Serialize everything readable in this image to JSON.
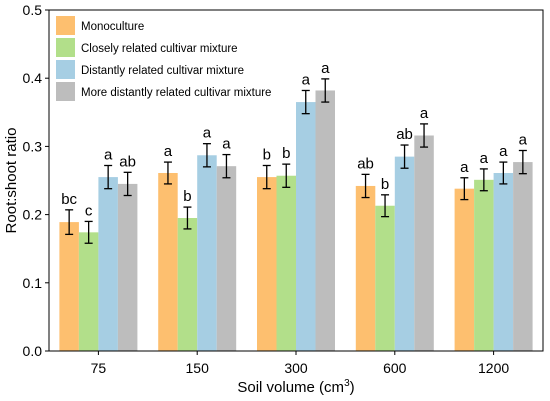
{
  "chart_data": {
    "type": "bar",
    "xlabel": "Soil volume (cm",
    "xlabel_sup": "3",
    "xlabel_end": ")",
    "ylabel": "Root:shoot ratio",
    "ylim": [
      0,
      0.5
    ],
    "yticks": [
      "0.0",
      "0.1",
      "0.2",
      "0.3",
      "0.4",
      "0.5"
    ],
    "categories": [
      "75",
      "150",
      "300",
      "600",
      "1200"
    ],
    "legend_position": "top-left",
    "series": [
      {
        "name": "Monoculture",
        "color": "#FDBF6F",
        "values": [
          0.189,
          0.261,
          0.255,
          0.242,
          0.238
        ],
        "errors": [
          0.018,
          0.016,
          0.017,
          0.017,
          0.016
        ],
        "letters": [
          "bc",
          "a",
          "b",
          "ab",
          "a"
        ]
      },
      {
        "name": "Closely related cultivar mixture",
        "color": "#B2DF8A",
        "values": [
          0.174,
          0.195,
          0.257,
          0.213,
          0.251
        ],
        "errors": [
          0.016,
          0.016,
          0.017,
          0.016,
          0.016
        ],
        "letters": [
          "c",
          "b",
          "b",
          "b",
          "a"
        ]
      },
      {
        "name": "Distantly related cultivar mixture",
        "color": "#A6CEE3",
        "values": [
          0.255,
          0.287,
          0.365,
          0.285,
          0.261
        ],
        "errors": [
          0.017,
          0.017,
          0.017,
          0.017,
          0.016
        ],
        "letters": [
          "a",
          "a",
          "a",
          "ab",
          "a"
        ]
      },
      {
        "name": "More distantly related cultivar mixture",
        "color": "#BDBDBD",
        "values": [
          0.245,
          0.271,
          0.382,
          0.316,
          0.277
        ],
        "errors": [
          0.017,
          0.017,
          0.017,
          0.017,
          0.017
        ],
        "letters": [
          "ab",
          "a",
          "a",
          "a",
          "a"
        ]
      }
    ]
  }
}
